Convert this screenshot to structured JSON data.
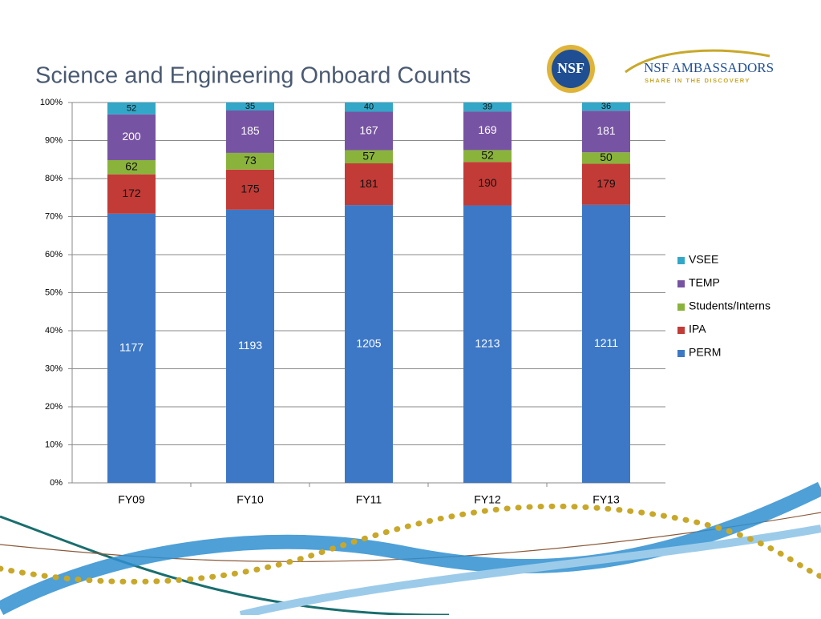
{
  "logo": {
    "seal": "NSF",
    "name": "NSF AMBASSADORS",
    "tagline": "SHARE IN THE DISCOVERY"
  },
  "chart_data": {
    "type": "bar",
    "stacked": "percent",
    "title": "Science and Engineering Onboard Counts",
    "categories": [
      "FY09",
      "FY10",
      "FY11",
      "FY12",
      "FY13"
    ],
    "series": [
      {
        "name": "PERM",
        "color": "#3d78c6",
        "values": [
          1177,
          1193,
          1205,
          1213,
          1211
        ]
      },
      {
        "name": "IPA",
        "color": "#c23b36",
        "values": [
          172,
          175,
          181,
          190,
          179
        ]
      },
      {
        "name": "Students/Interns",
        "color": "#8ab33c",
        "values": [
          62,
          73,
          57,
          52,
          50
        ]
      },
      {
        "name": "TEMP",
        "color": "#7753a3",
        "values": [
          200,
          185,
          167,
          169,
          181
        ]
      },
      {
        "name": "VSEE",
        "color": "#32a7c7",
        "values": [
          52,
          35,
          40,
          39,
          36
        ]
      }
    ],
    "ylim": [
      0,
      100
    ],
    "yticks": [
      {
        "value": 0,
        "label": "0%"
      },
      {
        "value": 10,
        "label": "10%"
      },
      {
        "value": 20,
        "label": "20%"
      },
      {
        "value": 30,
        "label": "30%"
      },
      {
        "value": 40,
        "label": "40%"
      },
      {
        "value": 50,
        "label": "50%"
      },
      {
        "value": 60,
        "label": "60%"
      },
      {
        "value": 70,
        "label": "70%"
      },
      {
        "value": 80,
        "label": "80%"
      },
      {
        "value": 90,
        "label": "90%"
      },
      {
        "value": 100,
        "label": "100%"
      }
    ],
    "grid": true,
    "legend": "right"
  }
}
